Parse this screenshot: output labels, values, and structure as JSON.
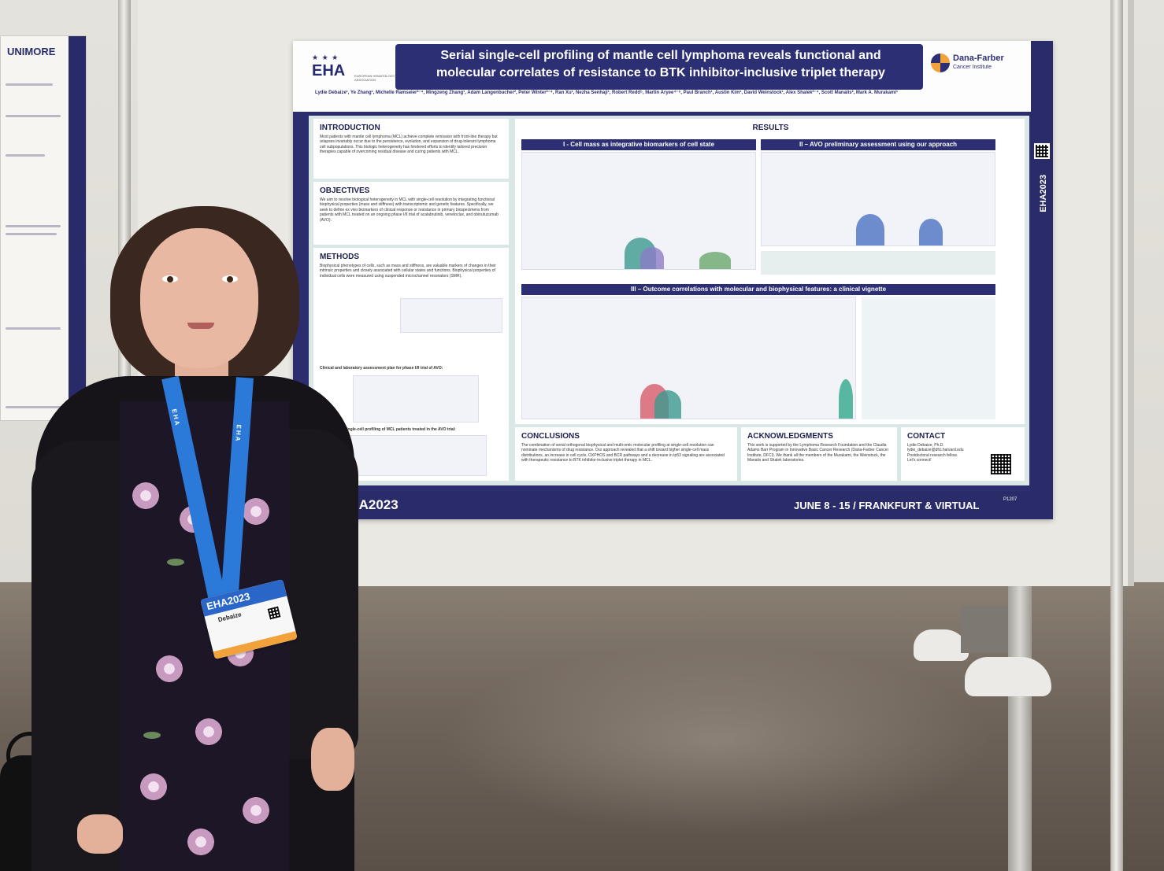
{
  "left_poster": {
    "header": "UNIMORE"
  },
  "poster": {
    "eha_logo": {
      "mark": "EHA",
      "subtitle": "EUROPEAN HEMATOLOGY ASSOCIATION"
    },
    "title_line1": "Serial single-cell profiling of mantle cell lymphoma reveals functional and",
    "title_line2": "molecular correlates of resistance to BTK inhibitor-inclusive triplet therapy",
    "institution": {
      "name": "Dana-Farber",
      "sub": "Cancer Institute"
    },
    "authors": "Lydie Debaize¹, Ye Zhang¹, Michelle Ramseier²⁻⁴, Mingzeng Zhang¹, Adam Langenbucher², Peter Winter²⁻⁴, Ran Xu¹, Nezha Senhaji¹, Robert Redd⁵, Martin Aryee⁴⁻⁵, Paul Branch¹, Austin Kim¹, David Weinstock¹, Alex Shalek²⁻⁴, Scott Manalis², Mark A. Murakami¹",
    "sections": {
      "introduction": {
        "title": "INTRODUCTION",
        "body": "Most patients with mantle cell lymphoma (MCL) achieve complete remission with front-line therapy but relapses invariably occur due to the persistence, evolution, and expansion of drug-tolerant lymphoma cell subpopulations. This biologic heterogeneity has hindered efforts to identify tailored precision therapies capable of overcoming residual disease and curing patients with MCL."
      },
      "objectives": {
        "title": "OBJECTIVES",
        "body": "We aim to resolve biological heterogeneity in MCL with single-cell resolution by integrating functional biophysical properties (mass and stiffness) with transcriptomic and genetic features. Specifically, we seek to define ex vivo biomarkers of clinical response or resistance in primary biospecimens from patients with MCL treated on an ongoing phase I/II trial of acalabrutinib, venetoclax, and obinutuzumab (AVO)."
      },
      "methods": {
        "title": "METHODS",
        "body": "Biophysical phenotypes of cells, such as mass and stiffness, are valuable markers of changes in their intrinsic properties and closely associated with cellular states and functions. Biophysical properties of individual cells were measured using suspended microchannel resonators (SMR).",
        "sub1": "Clinical and laboratory assessment plan for phase I/II trial of AVO:",
        "sub2": "Longitudinal single-cell profiling of MCL patients treated in the AVO trial:"
      },
      "results": {
        "title": "RESULTS",
        "band1": "I - Cell mass as integrative biomarkers of cell state",
        "band2": "II – AVO preliminary assessment using our approach",
        "band3": "III – Outcome correlations with molecular and biophysical features: a clinical vignette"
      },
      "conclusions": {
        "title": "CONCLUSIONS",
        "body": "The combination of serial orthogonal biophysical and multi-omic molecular profiling at single-cell resolution can nominate mechanisms of drug resistance. Our approach revealed that a shift toward higher single-cell mass distributions, an increase in cell cycle, OXPHOS and BCR pathways and a decrease in tp53 signaling are associated with therapeutic resistance to BTK inhibitor-inclusive triplet therapy in MCL."
      },
      "acknowledgments": {
        "title": "ACKNOWLEDGMENTS",
        "body": "This work is supported by the Lymphoma Research Foundation and the Claudia Adams Barr Program in Innovative Basic Cancer Research (Dana-Farber Cancer Institute, DFCI). We thank all the members of the Murakami, the Weinstock, the Manalis and Shalek laboratories."
      },
      "contact": {
        "title": "CONTACT",
        "name": "Lydie Debaize, Ph.D.",
        "email": "lydie_debaize@dfci.harvard.edu",
        "role": "Postdoctoral research fellow.",
        "cta": "Let's connect!"
      }
    },
    "side_strip": "EHA2023",
    "footer": {
      "left": "EHA2023",
      "right": "JUNE 8 - 15 / FRANKFURT & VIRTUAL",
      "code": "P1207"
    }
  },
  "badge": {
    "event": "EHA2023",
    "name": "Debaize"
  },
  "lanyard_text": "EHA",
  "colors": {
    "poster_navy": "#2c2f73",
    "poster_bg": "#d9e8e6",
    "lanyard_blue": "#2b79d8",
    "badge_orange": "#f2a23a"
  }
}
